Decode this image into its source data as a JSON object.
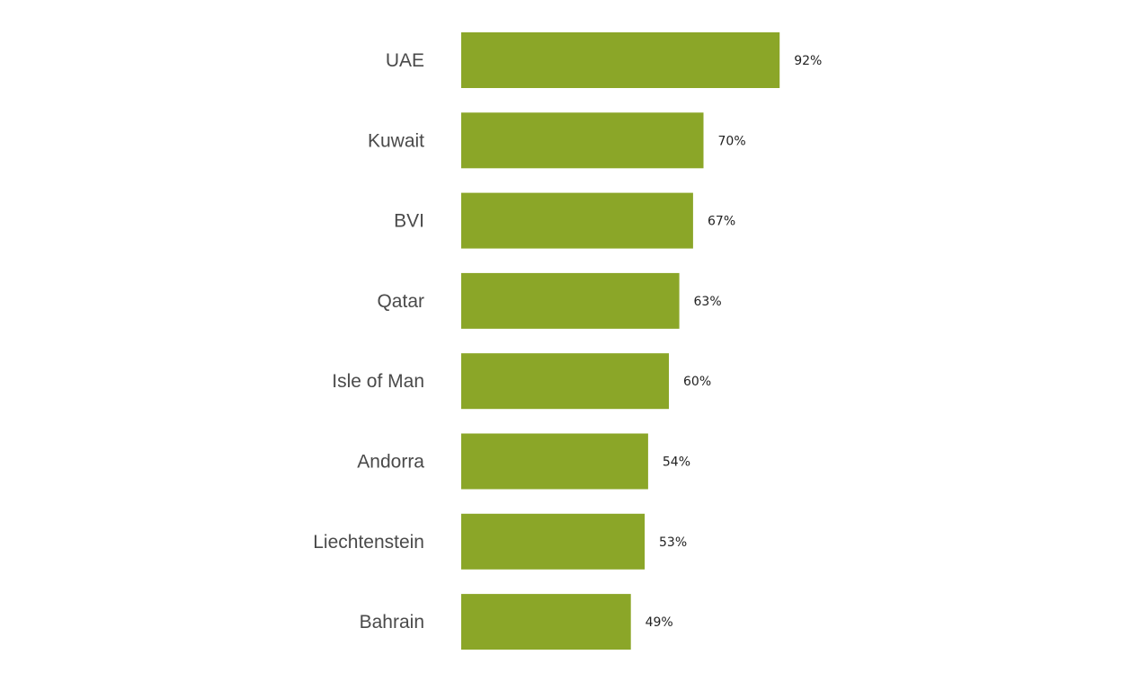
{
  "chart_data": {
    "type": "bar",
    "orientation": "horizontal",
    "categories": [
      "UAE",
      "Kuwait",
      "BVI",
      "Qatar",
      "Isle of Man",
      "Andorra",
      "Liechtenstein",
      "Bahrain"
    ],
    "values": [
      92,
      70,
      67,
      63,
      60,
      54,
      53,
      49
    ],
    "value_labels": [
      "92%",
      "70%",
      "67%",
      "63%",
      "60%",
      "54%",
      "53%",
      "49%"
    ],
    "unit": "%",
    "xlim": [
      0,
      100
    ],
    "grid": false,
    "legend": "none",
    "bar_color": "#8ba628",
    "title": "",
    "xlabel": "",
    "ylabel": ""
  }
}
